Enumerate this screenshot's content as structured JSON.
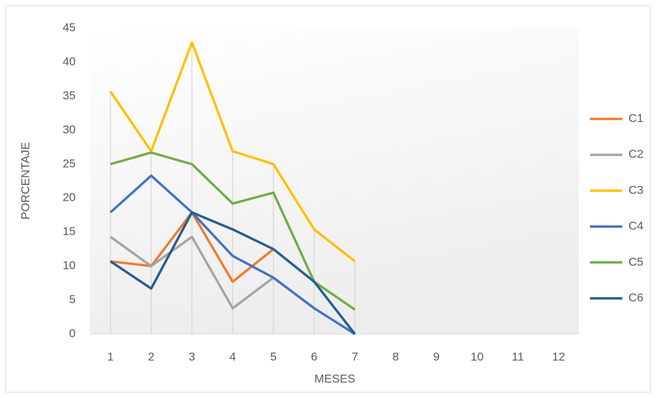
{
  "chart_data": {
    "type": "line",
    "xlabel": "MESES",
    "ylabel": "PORCENTAJE",
    "categories": [
      "1",
      "2",
      "3",
      "4",
      "5",
      "6",
      "7",
      "8",
      "9",
      "10",
      "11",
      "12"
    ],
    "series": [
      {
        "name": "C1",
        "color": "#ed7d31",
        "values": [
          10.7,
          10,
          17.9,
          7.7,
          12.5,
          null,
          null,
          null,
          null,
          null,
          null,
          null
        ]
      },
      {
        "name": "C2",
        "color": "#a5a5a5",
        "values": [
          14.3,
          10,
          14.3,
          3.8,
          8.3,
          null,
          null,
          null,
          null,
          null,
          null,
          null
        ]
      },
      {
        "name": "C3",
        "color": "#ffc000",
        "values": [
          35.7,
          26.9,
          42.9,
          26.9,
          25,
          15.4,
          10.7,
          null,
          null,
          null,
          null,
          null
        ]
      },
      {
        "name": "C4",
        "color": "#4472c4",
        "values": [
          17.9,
          23.3,
          17.9,
          11.5,
          8.3,
          3.8,
          0,
          null,
          null,
          null,
          null,
          null
        ]
      },
      {
        "name": "C5",
        "color": "#70ad47",
        "values": [
          25,
          26.7,
          25,
          19.2,
          20.8,
          7.7,
          3.6,
          null,
          null,
          null,
          null,
          null
        ]
      },
      {
        "name": "C6",
        "color": "#255e91",
        "values": [
          10.7,
          6.7,
          17.9,
          15.4,
          12.5,
          7.7,
          0,
          null,
          null,
          null,
          null,
          null
        ]
      }
    ],
    "ylim": [
      0,
      45
    ],
    "yticks": [
      0,
      5,
      10,
      15,
      20,
      25,
      30,
      35,
      40,
      45
    ],
    "drop_lines": true,
    "legend": "right"
  }
}
